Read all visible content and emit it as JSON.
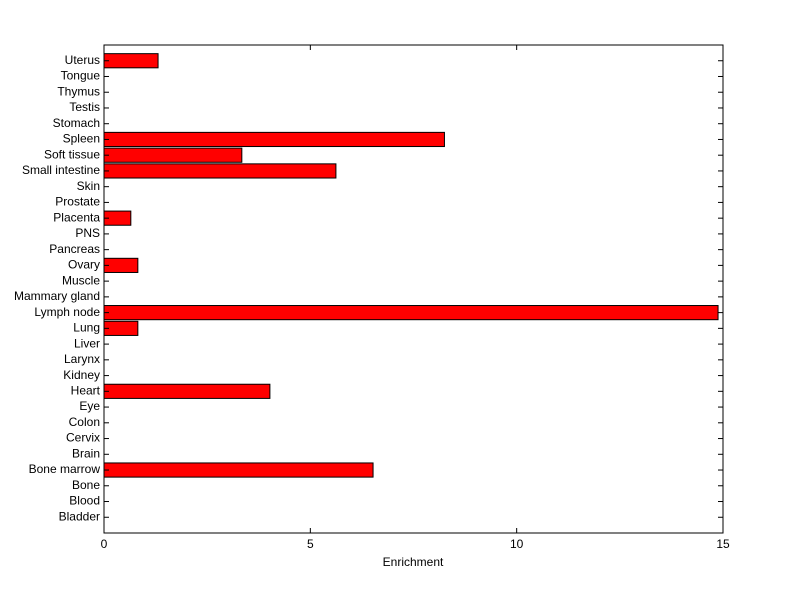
{
  "chart_data": {
    "type": "barh",
    "x_label": "Enrichment",
    "categories": [
      "Bladder",
      "Blood",
      "Bone",
      "Bone marrow",
      "Brain",
      "Cervix",
      "Colon",
      "Eye",
      "Heart",
      "Kidney",
      "Larynx",
      "Liver",
      "Lung",
      "Lymph node",
      "Mammary gland",
      "Muscle",
      "Ovary",
      "Pancreas",
      "PNS",
      "Placenta",
      "Prostate",
      "Skin",
      "Small intestine",
      "Soft tissue",
      "Spleen",
      "Stomach",
      "Testis",
      "Thymus",
      "Tongue",
      "Uterus"
    ],
    "values": [
      0,
      0,
      0,
      6.52,
      0,
      0,
      0,
      0,
      4.02,
      0,
      0,
      0,
      0.82,
      14.88,
      0,
      0,
      0.82,
      0,
      0,
      0.65,
      0,
      0,
      5.62,
      3.34,
      8.25,
      0,
      0,
      0,
      0,
      1.31
    ],
    "color": "#ff0000",
    "xlim": [
      0,
      15
    ],
    "xticks": [
      0,
      5,
      10,
      15
    ]
  }
}
